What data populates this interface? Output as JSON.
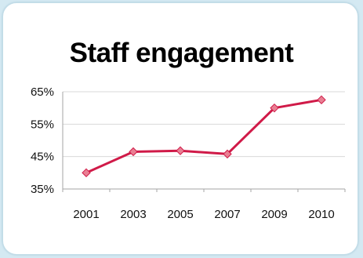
{
  "chart_data": {
    "type": "line",
    "title": "Staff engagement",
    "xlabel": "",
    "ylabel": "",
    "categories": [
      "2001",
      "2003",
      "2005",
      "2007",
      "2009",
      "2010"
    ],
    "series": [
      {
        "values": [
          40,
          46.5,
          46.8,
          45.8,
          60,
          62.5
        ]
      }
    ],
    "ylim": [
      35,
      65
    ],
    "yticks": [
      35,
      45,
      55,
      65
    ],
    "ytick_labels": [
      "35%",
      "45%",
      "55%",
      "65%"
    ],
    "grid": true,
    "legend": "none",
    "colors": {
      "line": "#d01a48",
      "marker": "#e97f93",
      "grid": "#d9d9d9",
      "axis": "#a6a6a6",
      "background": "#d4e9f2"
    }
  }
}
